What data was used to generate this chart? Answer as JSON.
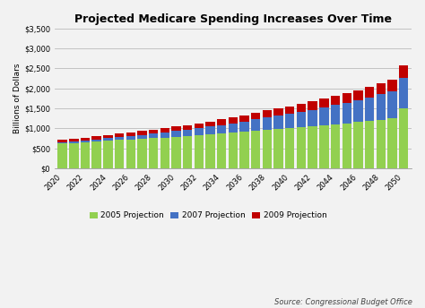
{
  "title": "Projected Medicare Spending Increases Over Time",
  "ylabel": "Billions of Dollars",
  "source": "Source: Congressional Budget Office",
  "years": [
    2020,
    2021,
    2022,
    2023,
    2024,
    2025,
    2026,
    2027,
    2028,
    2029,
    2030,
    2031,
    2032,
    2033,
    2034,
    2035,
    2036,
    2037,
    2038,
    2039,
    2040,
    2041,
    2042,
    2043,
    2044,
    2045,
    2046,
    2047,
    2048,
    2049,
    2050
  ],
  "proj2005": [
    620,
    635,
    655,
    670,
    685,
    705,
    720,
    735,
    755,
    770,
    790,
    810,
    830,
    850,
    870,
    890,
    915,
    940,
    960,
    985,
    1005,
    1025,
    1050,
    1075,
    1100,
    1125,
    1155,
    1185,
    1215,
    1250,
    1510
  ],
  "proj2007_add": [
    25,
    30,
    40,
    55,
    65,
    75,
    85,
    95,
    110,
    125,
    140,
    155,
    175,
    195,
    215,
    240,
    260,
    285,
    310,
    330,
    355,
    385,
    415,
    445,
    480,
    510,
    550,
    590,
    635,
    680,
    760
  ],
  "proj2009_add": [
    65,
    70,
    75,
    80,
    85,
    90,
    95,
    100,
    105,
    110,
    115,
    120,
    125,
    130,
    140,
    145,
    155,
    165,
    175,
    185,
    195,
    200,
    210,
    220,
    230,
    240,
    255,
    265,
    280,
    295,
    310
  ],
  "color_2005": "#92D050",
  "color_2007": "#4472C4",
  "color_2009": "#C00000",
  "background_color": "#F2F2F2",
  "plot_bg_color": "#F2F2F2",
  "ylim": [
    0,
    3500
  ],
  "yticks": [
    0,
    500,
    1000,
    1500,
    2000,
    2500,
    3000,
    3500
  ],
  "xtick_years": [
    2020,
    2022,
    2024,
    2026,
    2028,
    2030,
    2032,
    2034,
    2036,
    2038,
    2040,
    2042,
    2044,
    2046,
    2048,
    2050
  ],
  "legend_labels": [
    "2005 Projection",
    "2007 Projection",
    "2009 Projection"
  ],
  "title_fontsize": 9,
  "axis_label_fontsize": 6.5,
  "tick_fontsize": 6,
  "legend_fontsize": 6.5,
  "source_fontsize": 6
}
